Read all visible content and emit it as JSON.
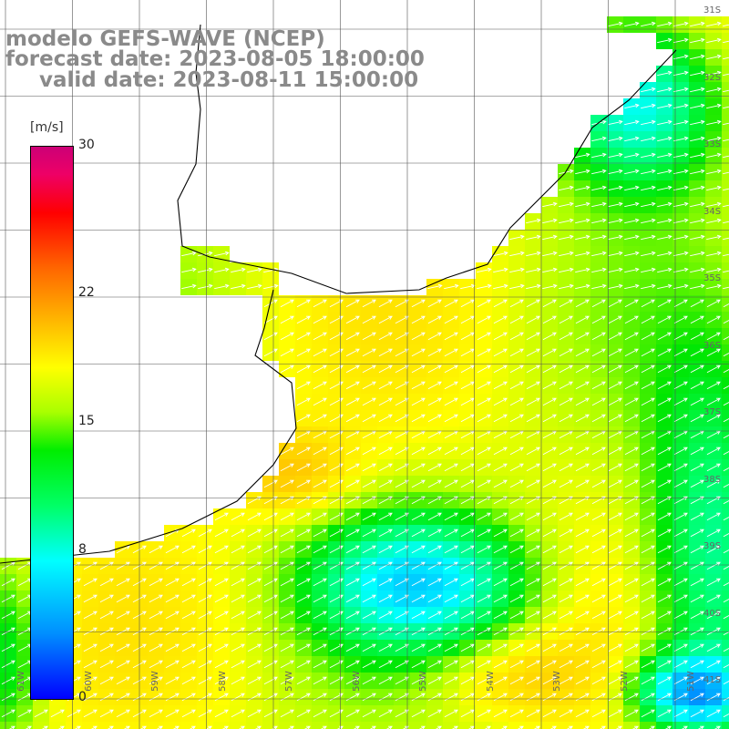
{
  "title": {
    "line1": "modelo GEFS-WAVE (NCEP)",
    "line2": "forecast date: 2023-08-05 18:00:00",
    "line3": "valid date: 2023-08-11 15:00:00"
  },
  "colorbar": {
    "units": "[m/s]",
    "ticks": [
      {
        "value": 30,
        "label": "30"
      },
      {
        "value": 22,
        "label": "22"
      },
      {
        "value": 15,
        "label": "15"
      },
      {
        "value": 8,
        "label": "8"
      },
      {
        "value": 0,
        "label": "0"
      }
    ],
    "min": 0,
    "max": 30
  },
  "lat_labels": [
    "31S",
    "32S",
    "33S",
    "34S",
    "35S",
    "36S",
    "37S",
    "38S",
    "39S",
    "40S",
    "41S"
  ],
  "lon_labels": [
    "61W",
    "60W",
    "59W",
    "58W",
    "57W",
    "56W",
    "55W",
    "54W",
    "53W",
    "52W",
    "51W"
  ],
  "colors": {
    "land": "#ffffff",
    "grid": "#555555",
    "coast": "#000000",
    "arrows": "#ffffff",
    "title": "#8a8a8a"
  }
}
